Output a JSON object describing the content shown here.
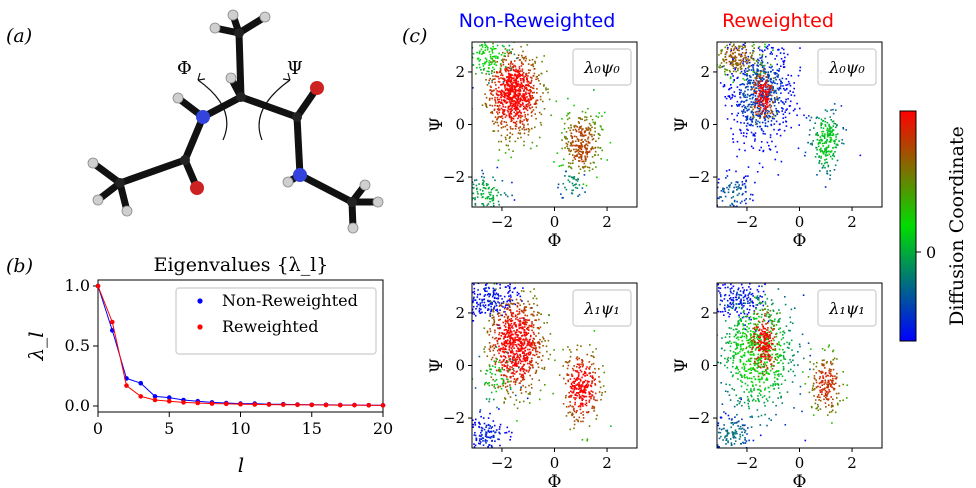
{
  "panel_labels": {
    "a": "(a)",
    "b": "(b)",
    "c": "(c)"
  },
  "molecule": {
    "phi_label": "Φ",
    "psi_label": "Ψ"
  },
  "colorbar": {
    "label": "Diffusion Coordinate",
    "tick": "0",
    "colors": [
      "#0000ff",
      "#00dd00",
      "#ff0000"
    ]
  },
  "column_headers": [
    {
      "text": "Non-Reweighted",
      "color": "#0000ff"
    },
    {
      "text": "Reweighted",
      "color": "#ff0000"
    }
  ],
  "chart_data": [
    {
      "type": "line",
      "title": "Eigenvalues {λ_l}",
      "xlabel": "l",
      "ylabel": "λ_l",
      "xlim": [
        0,
        20
      ],
      "ylim": [
        -0.05,
        1.05
      ],
      "xticks": [
        "0",
        "5",
        "10",
        "15",
        "20"
      ],
      "yticks": [
        "0.0",
        "0.5",
        "1.0"
      ],
      "legend_position": "top-right",
      "x": [
        0,
        1,
        2,
        3,
        4,
        5,
        6,
        7,
        8,
        9,
        10,
        11,
        12,
        13,
        14,
        15,
        16,
        17,
        18,
        19,
        20
      ],
      "series": [
        {
          "name": "Non-Reweighted",
          "color": "#0000ff",
          "values": [
            1.0,
            0.63,
            0.23,
            0.19,
            0.08,
            0.07,
            0.05,
            0.04,
            0.03,
            0.025,
            0.02,
            0.02,
            0.015,
            0.015,
            0.012,
            0.01,
            0.01,
            0.008,
            0.008,
            0.007,
            0.006
          ]
        },
        {
          "name": "Reweighted",
          "color": "#ff0000",
          "values": [
            1.0,
            0.7,
            0.17,
            0.08,
            0.05,
            0.04,
            0.03,
            0.025,
            0.02,
            0.018,
            0.015,
            0.013,
            0.012,
            0.011,
            0.01,
            0.009,
            0.008,
            0.007,
            0.007,
            0.006,
            0.005
          ]
        }
      ]
    },
    {
      "type": "scatter",
      "subplots": [
        {
          "id": "nr0",
          "annotation": "λ₀ψ₀",
          "column": "Non-Reweighted",
          "xlabel": "Φ",
          "ylabel": "Ψ",
          "xlim": [
            -3.14,
            3.14
          ],
          "ylim": [
            -3.14,
            3.14
          ],
          "xticks": [
            "−2",
            "0",
            "2"
          ],
          "yticks": [
            "−2",
            "0",
            "2"
          ],
          "clusters": [
            {
              "cx": -1.6,
              "cy": 1.2,
              "sx": 0.5,
              "sy": 0.75,
              "n": 900,
              "level": 1.0
            },
            {
              "cx": -2.5,
              "cy": 2.6,
              "sx": 0.5,
              "sy": 0.4,
              "n": 120,
              "level": 0.5
            },
            {
              "cx": 1.0,
              "cy": -0.7,
              "sx": 0.35,
              "sy": 0.6,
              "n": 300,
              "level": 0.85
            },
            {
              "cx": -2.6,
              "cy": -2.6,
              "sx": 0.4,
              "sy": 0.35,
              "n": 110,
              "level": 0.4
            },
            {
              "cx": 0.6,
              "cy": -2.3,
              "sx": 0.3,
              "sy": 0.35,
              "n": 40,
              "level": 0.3
            }
          ]
        },
        {
          "id": "rw0",
          "annotation": "λ₀ψ₀",
          "column": "Reweighted",
          "xlabel": "Φ",
          "ylabel": "Ψ",
          "xlim": [
            -3.14,
            3.14
          ],
          "ylim": [
            -3.14,
            3.14
          ],
          "xticks": [
            "−2",
            "0",
            "2"
          ],
          "yticks": [
            "−2",
            "0",
            "2"
          ],
          "clusters": [
            {
              "cx": -1.5,
              "cy": 1.2,
              "sx": 0.6,
              "sy": 1.0,
              "n": 700,
              "level": 0.15
            },
            {
              "cx": -1.4,
              "cy": 1.1,
              "sx": 0.22,
              "sy": 0.45,
              "n": 180,
              "level": 1.0
            },
            {
              "cx": -2.4,
              "cy": 2.6,
              "sx": 0.45,
              "sy": 0.35,
              "n": 200,
              "level": 0.8
            },
            {
              "cx": 1.0,
              "cy": -0.6,
              "sx": 0.3,
              "sy": 0.6,
              "n": 220,
              "level": 0.45
            },
            {
              "cx": -2.6,
              "cy": -2.6,
              "sx": 0.4,
              "sy": 0.35,
              "n": 100,
              "level": 0.2
            }
          ]
        },
        {
          "id": "nr1",
          "annotation": "λ₁ψ₁",
          "column": "Non-Reweighted",
          "xlabel": "Φ",
          "ylabel": "Ψ",
          "xlim": [
            -3.14,
            3.14
          ],
          "ylim": [
            -3.14,
            3.14
          ],
          "xticks": [
            "−2",
            "0",
            "2"
          ],
          "yticks": [
            "−2",
            "0",
            "2"
          ],
          "clusters": [
            {
              "cx": -2.5,
              "cy": 2.6,
              "sx": 0.55,
              "sy": 0.45,
              "n": 220,
              "level": 0.05
            },
            {
              "cx": -1.5,
              "cy": 0.8,
              "sx": 0.5,
              "sy": 0.85,
              "n": 850,
              "level": 1.0
            },
            {
              "cx": 1.0,
              "cy": -0.8,
              "sx": 0.35,
              "sy": 0.65,
              "n": 330,
              "level": 1.0
            },
            {
              "cx": -2.6,
              "cy": -2.6,
              "sx": 0.4,
              "sy": 0.35,
              "n": 130,
              "level": 0.08
            },
            {
              "cx": -2.2,
              "cy": -0.4,
              "sx": 0.4,
              "sy": 0.6,
              "n": 60,
              "level": 0.45
            }
          ]
        },
        {
          "id": "rw1",
          "annotation": "λ₁ψ₁",
          "column": "Reweighted",
          "xlabel": "Φ",
          "ylabel": "Ψ",
          "xlim": [
            -3.14,
            3.14
          ],
          "ylim": [
            -3.14,
            3.14
          ],
          "xticks": [
            "−2",
            "0",
            "2"
          ],
          "yticks": [
            "−2",
            "0",
            "2"
          ],
          "clusters": [
            {
              "cx": -2.5,
              "cy": 2.6,
              "sx": 0.55,
              "sy": 0.45,
              "n": 200,
              "level": 0.05
            },
            {
              "cx": -1.6,
              "cy": 0.5,
              "sx": 0.7,
              "sy": 1.1,
              "n": 700,
              "level": 0.5
            },
            {
              "cx": -1.4,
              "cy": 0.9,
              "sx": 0.25,
              "sy": 0.55,
              "n": 220,
              "level": 1.0
            },
            {
              "cx": 1.0,
              "cy": -0.7,
              "sx": 0.3,
              "sy": 0.55,
              "n": 200,
              "level": 0.9
            },
            {
              "cx": -2.6,
              "cy": -2.6,
              "sx": 0.4,
              "sy": 0.35,
              "n": 120,
              "level": 0.25
            }
          ]
        }
      ]
    }
  ]
}
